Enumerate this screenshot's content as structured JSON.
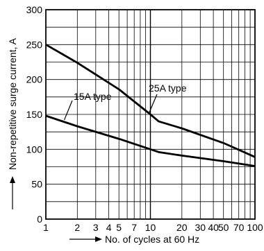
{
  "chart_data": {
    "type": "line",
    "title": "",
    "xlabel": "No. of cycles at 60 Hz",
    "ylabel": "Non-repetitive surge current, A",
    "x_scale": "log",
    "xlim": [
      1,
      100
    ],
    "ylim": [
      0,
      300
    ],
    "grid": true,
    "x_ticks": [
      1,
      2,
      3,
      4,
      5,
      7,
      10,
      20,
      30,
      40,
      50,
      70,
      100
    ],
    "x_tick_labels": [
      "1",
      "2",
      "3",
      "4",
      "5",
      "7",
      "10",
      "20",
      "30",
      "40",
      "50",
      "70",
      "100"
    ],
    "y_ticks": [
      0,
      50,
      100,
      150,
      200,
      250,
      300
    ],
    "y_tick_labels": [
      "0",
      "50",
      "100",
      "150",
      "200",
      "250",
      "300"
    ],
    "series": [
      {
        "name": "25A type",
        "x": [
          1,
          2,
          5,
          10,
          12,
          20,
          50,
          100
        ],
        "y": [
          250,
          224,
          186,
          150,
          140,
          130,
          109,
          89
        ]
      },
      {
        "name": "15A type",
        "x": [
          1,
          2,
          5,
          10,
          12,
          20,
          50,
          100
        ],
        "y": [
          148,
          133,
          115,
          100,
          96,
          91,
          83,
          76
        ]
      }
    ],
    "annotations": [
      {
        "text": "25A type",
        "series": 0,
        "x": 10,
        "y": 150
      },
      {
        "text": "15A type",
        "series": 1,
        "x": 1.5,
        "y": 141
      }
    ],
    "colors": {
      "lines": "#000000",
      "grid": "#000000"
    }
  }
}
